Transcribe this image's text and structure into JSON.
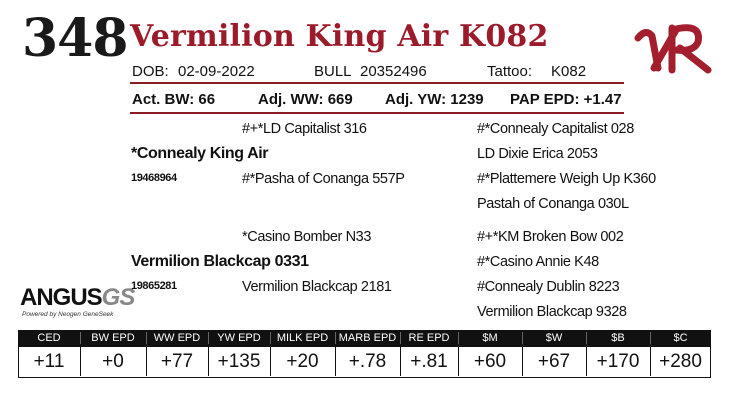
{
  "animal": {
    "lot_number": "348",
    "name": "Vermilion King Air K082"
  },
  "info": {
    "dob_label": "DOB:",
    "dob": "02-09-2022",
    "sex": "BULL",
    "registration": "20352496",
    "tattoo_label": "Tattoo:",
    "tattoo": "K082"
  },
  "stats": {
    "act_bw": "Act. BW: 66",
    "adj_ww": "Adj. WW: 669",
    "adj_yw": "Adj. YW: 1239",
    "pap_epd": "PAP EPD: +1.47"
  },
  "pedigree": {
    "sire": "*Connealy King Air",
    "sire_reg": "19468964",
    "sire_sire": "#+*LD Capitalist 316",
    "sire_dam": "#*Pasha of Conanga 557P",
    "sire_sire_sire": "#*Connealy Capitalist 028",
    "sire_sire_dam": "LD Dixie Erica 2053",
    "sire_dam_sire": "#*Plattemere Weigh Up K360",
    "sire_dam_dam": "Pastah of Conanga 030L",
    "dam": "Vermilion Blackcap 0331",
    "dam_reg": "19865281",
    "dam_sire": "*Casino Bomber N33",
    "dam_dam": "Vermilion Blackcap 2181",
    "dam_sire_sire": "#+*KM Broken Bow 002",
    "dam_sire_dam": "#*Casino Annie K48",
    "dam_dam_sire": "#Connealy Dublin 8223",
    "dam_dam_dam": "Vermilion Blackcap 9328"
  },
  "logo": {
    "angus": "ANGUS",
    "gs": "GS",
    "tagline": "Powered by Neogen GeneSeek",
    "brand_mark": "VR",
    "brand_color": "#a31f2e",
    "accent_color": "#9b1b2b"
  },
  "epd": {
    "headers": [
      "CED",
      "BW EPD",
      "WW EPD",
      "YW EPD",
      "MILK EPD",
      "MARB EPD",
      "RE EPD",
      "$M",
      "$W",
      "$B",
      "$C"
    ],
    "values": [
      "+11",
      "+0",
      "+77",
      "+135",
      "+20",
      "+.78",
      "+.81",
      "+60",
      "+67",
      "+170",
      "+280"
    ]
  }
}
